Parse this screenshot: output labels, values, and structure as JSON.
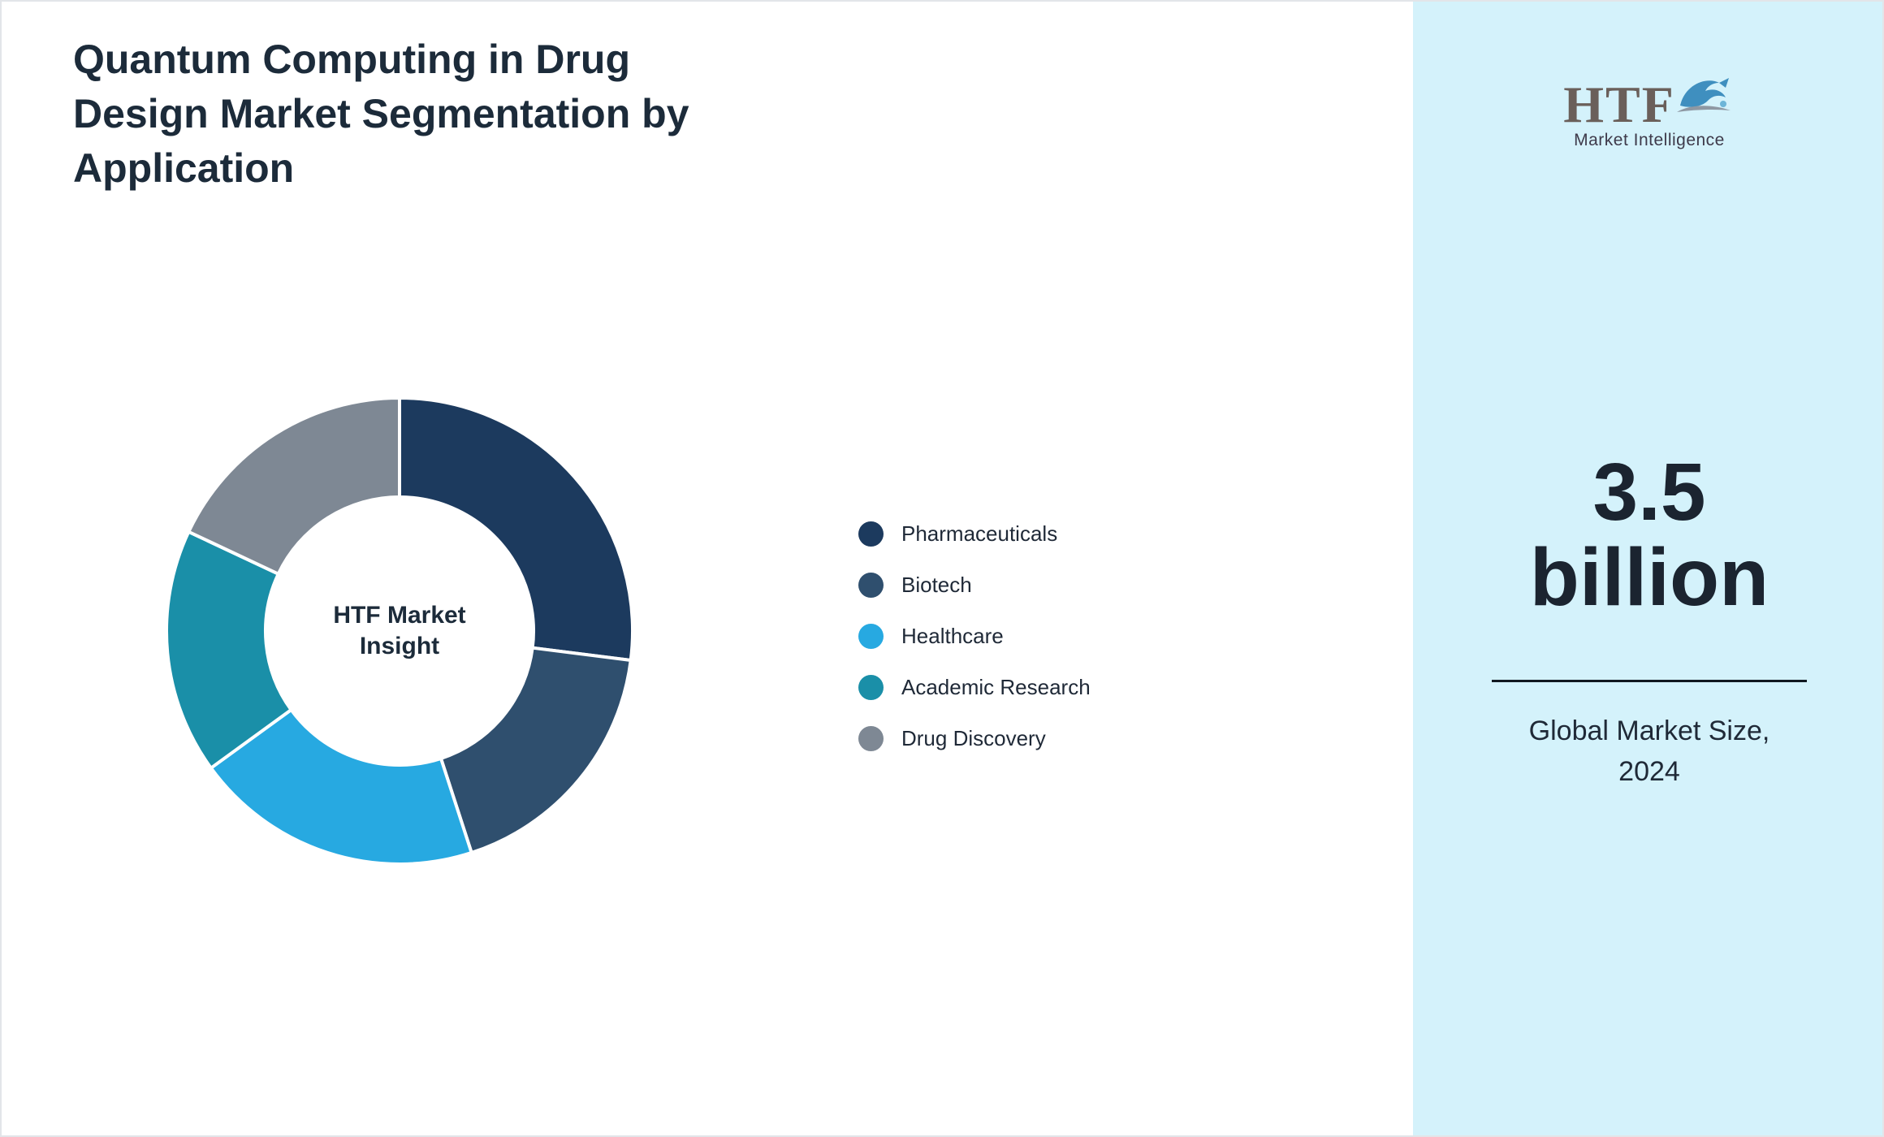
{
  "page": {
    "title": "Quantum Computing in Drug Design Market Segmentation by Application",
    "title_lines": [
      "Quantum Computing in Drug",
      "Design Market Segmentation by",
      "Application"
    ]
  },
  "chart_data": {
    "type": "pie",
    "donut": true,
    "title": "Quantum Computing in Drug Design Market Segmentation by Application",
    "center_label": "HTF Market Insight",
    "legend_position": "right",
    "units": "percent (estimated from arc angles; no numeric labels shown)",
    "segments": [
      {
        "label": "Pharmaceuticals",
        "value": 27,
        "color": "#1c3a5e"
      },
      {
        "label": "Biotech",
        "value": 18,
        "color": "#2f4f6e"
      },
      {
        "label": "Healthcare",
        "value": 20,
        "color": "#27a9e1"
      },
      {
        "label": "Academic Research",
        "value": 17,
        "color": "#1a8fa8"
      },
      {
        "label": "Drug Discovery",
        "value": 18,
        "color": "#7e8894"
      }
    ]
  },
  "sidebar": {
    "background": "#d4f2fb",
    "logo": {
      "name": "HTF",
      "tagline": "Market Intelligence",
      "mark": "dolphin-icon"
    },
    "market_size": {
      "value": "3.5 billion",
      "caption": "Global Market Size, 2024"
    }
  }
}
